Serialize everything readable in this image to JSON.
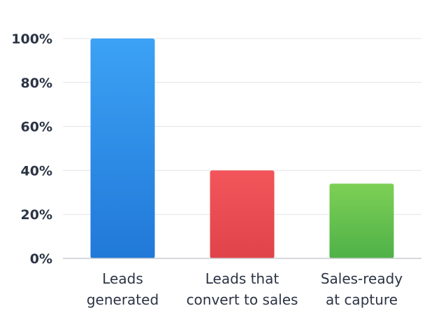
{
  "chart_data": {
    "type": "bar",
    "categories": [
      [
        "Leads",
        "generated"
      ],
      [
        "Leads that",
        "convert to sales"
      ],
      [
        "Sales-ready",
        "at capture"
      ]
    ],
    "values": [
      100,
      40,
      34
    ],
    "colors": [
      {
        "top": "#3ca2f4",
        "bottom": "#2178d8"
      },
      {
        "top": "#f2555a",
        "bottom": "#e1434b"
      },
      {
        "top": "#7dd055",
        "bottom": "#4fb148"
      }
    ],
    "yticks": [
      "0%",
      "20%",
      "40%",
      "60%",
      "80%",
      "100%"
    ],
    "ytick_values": [
      0,
      20,
      40,
      60,
      80,
      100
    ],
    "ylim": [
      0,
      100
    ],
    "grid": true,
    "title": "",
    "xlabel": "",
    "ylabel": ""
  }
}
